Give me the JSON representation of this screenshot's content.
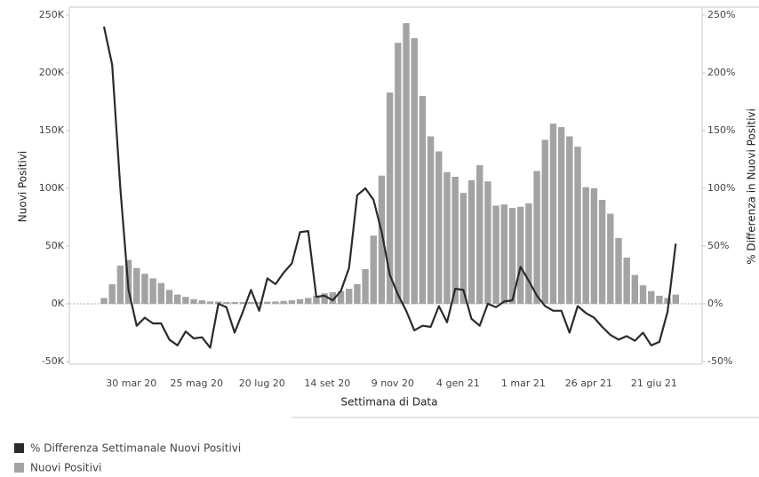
{
  "chart_data": {
    "type": "bar",
    "x_label": "Settimana di Data",
    "y_label": "Nuovi Positivi",
    "y2_label": "% Differenza in Nuovi Positivi",
    "categories": [
      null,
      null,
      null,
      null,
      "30 mar 20",
      null,
      null,
      null,
      null,
      null,
      null,
      null,
      "25 mag 20",
      null,
      null,
      null,
      null,
      null,
      null,
      null,
      "20 lug 20",
      null,
      null,
      null,
      null,
      null,
      null,
      null,
      "14 set 20",
      null,
      null,
      null,
      null,
      null,
      null,
      null,
      "9 nov 20",
      null,
      null,
      null,
      null,
      null,
      null,
      null,
      "4 gen 21",
      null,
      null,
      null,
      null,
      null,
      null,
      null,
      "1 mar 21",
      null,
      null,
      null,
      null,
      null,
      null,
      null,
      "26 apr 21",
      null,
      null,
      null,
      null,
      null,
      null,
      null,
      "21 giu 21",
      null,
      null
    ],
    "series": [
      {
        "name": "% Differenza Settimanale Nuovi Positivi",
        "type": "line",
        "axis": "y2",
        "color": "#2b2b2b",
        "values": [
          240,
          207,
          100,
          12,
          -19,
          -12,
          -17,
          -17,
          -31,
          -36,
          -24,
          -30,
          -29,
          -38,
          0,
          -3,
          -25,
          -7,
          12,
          -6,
          22,
          17,
          27,
          35,
          62,
          63,
          6,
          7,
          3,
          11,
          31,
          94,
          100,
          90,
          62,
          25,
          8,
          -6,
          -23,
          -19,
          -20,
          -2,
          -16,
          13,
          12,
          -13,
          -19,
          0,
          -3,
          2,
          3,
          32,
          20,
          7,
          -2,
          -6,
          -6,
          -25,
          -2,
          -8,
          -12,
          -20,
          -27,
          -31,
          -28,
          -32,
          -25,
          -36,
          -33,
          -7,
          52
        ]
      },
      {
        "name": "Nuovi Positivi",
        "type": "bar",
        "color": "#a3a3a3",
        "values": [
          5000,
          17000,
          33000,
          38000,
          31000,
          26000,
          22000,
          18000,
          12000,
          8000,
          6000,
          4000,
          3000,
          2000,
          2000,
          1500,
          1500,
          1500,
          1500,
          1500,
          1800,
          2000,
          2500,
          3000,
          4000,
          5000,
          7000,
          9000,
          10000,
          11000,
          13000,
          17000,
          30000,
          59000,
          111000,
          183000,
          226000,
          243000,
          230000,
          180000,
          145000,
          132000,
          114000,
          110000,
          96000,
          107000,
          120000,
          106000,
          85000,
          86000,
          83000,
          84000,
          87000,
          115000,
          142000,
          156000,
          153000,
          145000,
          136000,
          101000,
          100000,
          90000,
          78000,
          57000,
          40000,
          25000,
          16000,
          11000,
          7000,
          5000,
          8000
        ]
      }
    ],
    "ylim": [
      -50000,
      250000
    ],
    "yticks": [
      {
        "value": 250000,
        "label": "250K"
      },
      {
        "value": 200000,
        "label": "200K"
      },
      {
        "value": 150000,
        "label": "150K"
      },
      {
        "value": 100000,
        "label": "100K"
      },
      {
        "value": 50000,
        "label": "50K"
      },
      {
        "value": 0,
        "label": "0K"
      },
      {
        "value": -50000,
        "label": "-50K"
      }
    ],
    "y2lim": [
      -50,
      250
    ],
    "y2ticks": [
      {
        "value": 250,
        "label": "250%"
      },
      {
        "value": 200,
        "label": "200%"
      },
      {
        "value": 150,
        "label": "150%"
      },
      {
        "value": 100,
        "label": "100%"
      },
      {
        "value": 50,
        "label": "50%"
      },
      {
        "value": 0,
        "label": "0%"
      },
      {
        "value": -50,
        "label": "-50%"
      }
    ]
  }
}
